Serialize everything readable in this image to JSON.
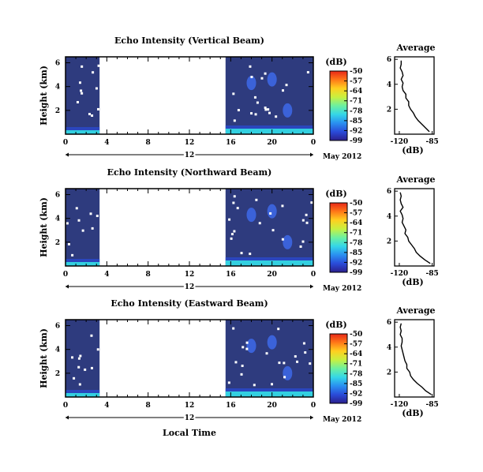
{
  "chart_data": [
    {
      "type": "heatmap",
      "title": "Echo Intensity (Vertical Beam)",
      "ylabel": "Height (km)",
      "xlabel": "",
      "x_ticks": [
        "0",
        "4",
        "8",
        "12",
        "16",
        "20",
        "0"
      ],
      "y_ticks": [
        "6",
        "4",
        "2"
      ],
      "date_center": "12",
      "date_right": "May 2012",
      "data_gap_hours": [
        3.3,
        15.5
      ],
      "colorbar_label": "(dB)",
      "colorbar_ticks": [
        "-50",
        "-57",
        "-64",
        "-71",
        "-78",
        "-85",
        "-92",
        "-99"
      ],
      "clim": [
        -99,
        -50
      ],
      "profile": {
        "title": "Average",
        "xlabel": "(dB)",
        "x_ticks": [
          "-120",
          "-85"
        ],
        "y_ticks": [
          "6",
          "4",
          "2"
        ],
        "height_km": [
          0.2,
          0.5,
          0.8,
          1.1,
          1.4,
          1.7,
          2.0,
          2.3,
          2.6,
          2.9,
          3.2,
          3.5,
          3.8,
          4.1,
          4.4,
          4.7,
          5.0,
          5.3,
          5.6,
          5.9
        ],
        "db": [
          -88,
          -92,
          -96,
          -100,
          -103,
          -105,
          -108,
          -110,
          -110,
          -113,
          -113,
          -116,
          -117,
          -116,
          -118,
          -116,
          -117,
          -119,
          -118,
          -118
        ]
      }
    },
    {
      "type": "heatmap",
      "title": "Echo Intensity (Northward Beam)",
      "ylabel": "Height (km)",
      "xlabel": "",
      "x_ticks": [
        "0",
        "4",
        "8",
        "12",
        "16",
        "20",
        "0"
      ],
      "y_ticks": [
        "6",
        "4",
        "2"
      ],
      "date_center": "12",
      "date_right": "May 2012",
      "data_gap_hours": [
        3.3,
        15.5
      ],
      "colorbar_label": "(dB)",
      "colorbar_ticks": [
        "-50",
        "-57",
        "-64",
        "-71",
        "-78",
        "-85",
        "-92",
        "-99"
      ],
      "clim": [
        -99,
        -50
      ],
      "profile": {
        "title": "Average",
        "xlabel": "(dB)",
        "x_ticks": [
          "-120",
          "-85"
        ],
        "y_ticks": [
          "6",
          "4",
          "2"
        ],
        "height_km": [
          0.2,
          0.5,
          0.8,
          1.1,
          1.4,
          1.7,
          2.0,
          2.3,
          2.6,
          2.9,
          3.2,
          3.5,
          3.8,
          4.1,
          4.4,
          4.7,
          5.0,
          5.3,
          5.6,
          5.9
        ],
        "db": [
          -87,
          -93,
          -98,
          -102,
          -104,
          -107,
          -110,
          -111,
          -114,
          -113,
          -115,
          -117,
          -116,
          -117,
          -119,
          -116,
          -118,
          -119,
          -118,
          -119
        ]
      }
    },
    {
      "type": "heatmap",
      "title": "Echo Intensity (Eastward Beam)",
      "ylabel": "Height (km)",
      "xlabel": "Local Time",
      "x_ticks": [
        "0",
        "4",
        "8",
        "12",
        "16",
        "20",
        "0"
      ],
      "y_ticks": [
        "6",
        "4",
        "2"
      ],
      "date_center": "12",
      "date_right": "May 2012",
      "data_gap_hours": [
        3.3,
        15.5
      ],
      "colorbar_label": "(dB)",
      "colorbar_ticks": [
        "-50",
        "-57",
        "-64",
        "-71",
        "-78",
        "-85",
        "-92",
        "-99"
      ],
      "clim": [
        -99,
        -50
      ],
      "profile": {
        "title": "Average",
        "xlabel": "(dB)",
        "x_ticks": [
          "-120",
          "-85"
        ],
        "y_ticks": [
          "6",
          "4",
          "2"
        ],
        "height_km": [
          0.2,
          0.5,
          0.8,
          1.1,
          1.4,
          1.7,
          2.0,
          2.3,
          2.6,
          2.9,
          3.2,
          3.5,
          3.8,
          4.1,
          4.4,
          4.7,
          5.0,
          5.3,
          5.6,
          5.9
        ],
        "db": [
          -86,
          -92,
          -96,
          -101,
          -105,
          -108,
          -109,
          -112,
          -112,
          -114,
          -115,
          -116,
          -117,
          -118,
          -117,
          -117,
          -119,
          -118,
          -119,
          -118
        ]
      }
    }
  ],
  "colors": {
    "field": "#2e3b7e",
    "surface": "#33d0e0",
    "blob": "#3f6df0",
    "colormap": [
      "#2b1f8c",
      "#2a4bd8",
      "#2a8ff0",
      "#35d6e8",
      "#6cf0a0",
      "#c8f040",
      "#ffd020",
      "#ff7818",
      "#e82818"
    ]
  }
}
